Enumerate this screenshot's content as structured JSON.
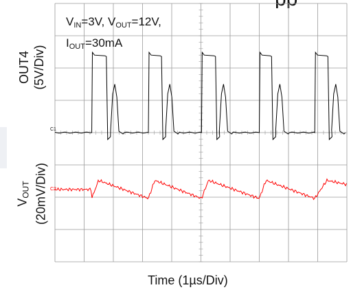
{
  "chart_data": {
    "type": "line",
    "title_fragment": "pp",
    "annotation": {
      "vin_text": "V",
      "vin_sub": "IN",
      "vin_value": "=3V",
      "vout_text": "V",
      "vout_sub": "OUT",
      "vout_value": "=12V",
      "iout_text": "I",
      "iout_sub": "OUT",
      "iout_value": "=30mA"
    },
    "channel1": {
      "label_line1": "OUT4",
      "label_line2": "(5V/Div)",
      "marker": "C1",
      "color": "#000000",
      "low_level_div": 0,
      "high_level_div": 2.4,
      "pulses": [
        {
          "rise_div": 1.26,
          "fall_div": 1.76,
          "ring_div": 2.15
        },
        {
          "rise_div": 3.2,
          "fall_div": 3.65,
          "ring_div": 4.03
        },
        {
          "rise_div": 5.02,
          "fall_div": 5.5,
          "ring_div": 5.86
        },
        {
          "rise_div": 7.0,
          "fall_div": 7.42,
          "ring_div": 7.8
        },
        {
          "rise_div": 8.9,
          "fall_div": 9.35,
          "ring_div": 9.7
        }
      ]
    },
    "channel2": {
      "label_main": "V",
      "label_sub": "OUT",
      "label_line2": "(20mV/Div)",
      "marker": "C2",
      "color": "#ff0000",
      "ripple_start_div": 0,
      "ripple_end_div": 10,
      "ripple_amplitude_div": 0.35
    },
    "x_axis": {
      "label": "Time (1µs/Div)",
      "label_main": "Time (1",
      "label_unit": "µ",
      "label_tail": "s/Div)",
      "divisions": 10
    },
    "y_axis": {
      "divisions": 8
    },
    "grid": true
  }
}
